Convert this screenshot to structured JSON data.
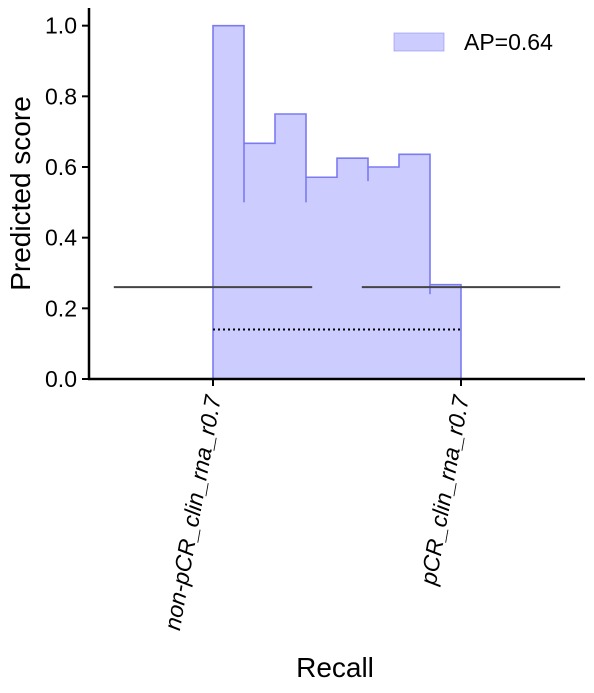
{
  "chart_data": {
    "type": "area",
    "xlabel": "Recall",
    "ylabel": "Predicted score",
    "ylim": [
      0,
      1.05
    ],
    "yticks": [
      0.0,
      0.2,
      0.4,
      0.6,
      0.8,
      1.0
    ],
    "ytick_labels": [
      "0.0",
      "0.2",
      "0.4",
      "0.6",
      "0.8",
      "1.0"
    ],
    "categories": [
      "non-pCR_clin_rna_r0.7",
      "pCR_clin_rna_r0.7"
    ],
    "legend_position": "top-right",
    "grid": false,
    "series": [
      {
        "name": "AP=0.64",
        "color": "#7b7bf0",
        "fill": "#ccccff",
        "recall": [
          0.0,
          0.125,
          0.25,
          0.375,
          0.5,
          0.625,
          0.75,
          0.875,
          1.0
        ],
        "precision": [
          1.0,
          0.667,
          0.75,
          0.571,
          0.625,
          0.6,
          0.636,
          0.267,
          0.267
        ]
      }
    ],
    "reference_lines": [
      {
        "style": "solid",
        "color": "#444444",
        "y": 0.26,
        "segments": [
          [
            -0.4,
            0.4
          ],
          [
            0.6,
            1.4
          ]
        ]
      },
      {
        "style": "dotted",
        "color": "#000000",
        "y": 0.14,
        "segments": [
          [
            0.0,
            1.0
          ]
        ]
      }
    ]
  }
}
